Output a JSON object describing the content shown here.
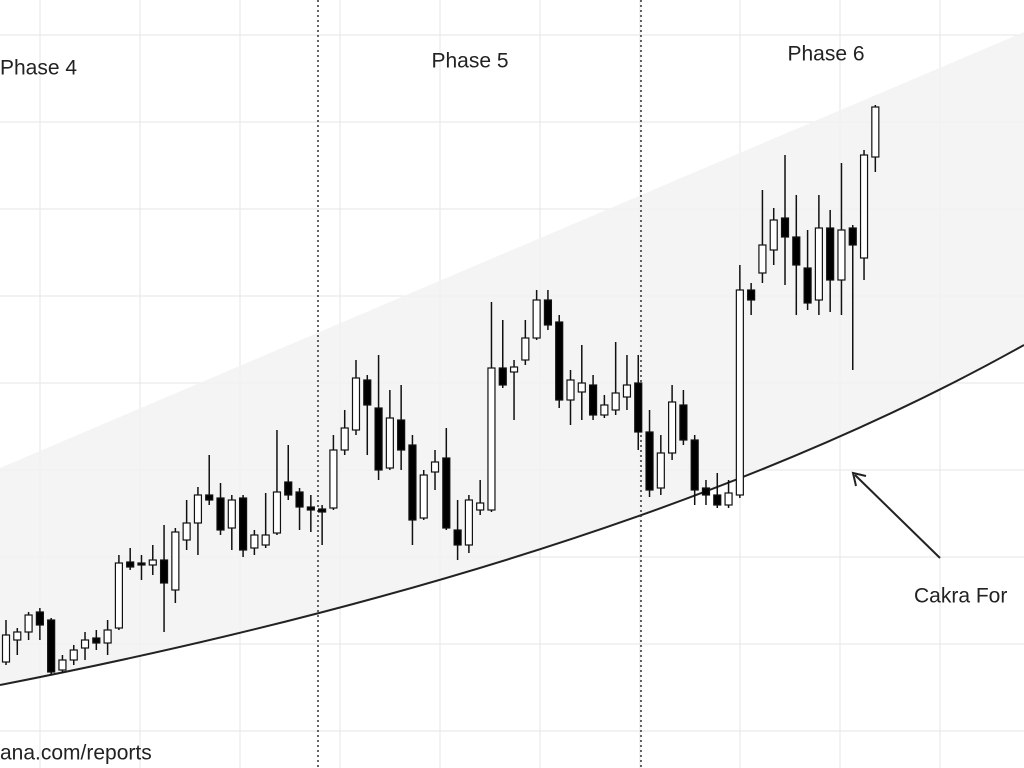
{
  "chart_data": {
    "type": "candlestick",
    "annotations": {
      "phase_4": "Phase 4",
      "phase_5": "Phase 5",
      "phase_6": "Phase 6",
      "pattern": "Cakra For",
      "source": "ana.com/reports"
    },
    "ylim": [
      0,
      768
    ],
    "up_color": "#ffffff",
    "down_color": "#000000",
    "open": [
      106,
      128,
      136,
      156,
      148,
      98,
      108,
      120,
      130,
      125,
      140,
      206,
      205,
      203,
      208,
      178,
      228,
      245,
      273,
      270,
      240,
      270,
      220,
      223,
      235,
      286,
      276,
      261,
      259,
      260,
      318,
      338,
      388,
      360,
      300,
      348,
      323,
      250,
      296,
      310,
      238,
      223,
      258,
      258,
      400,
      396,
      408,
      430,
      468,
      446,
      368,
      376,
      383,
      353,
      358,
      371,
      385,
      336,
      280,
      315,
      363,
      328,
      280,
      273,
      263,
      273,
      478,
      495,
      518,
      550,
      531,
      500,
      468,
      540,
      488,
      540,
      510,
      611
    ],
    "high": [
      148,
      140,
      156,
      160,
      150,
      113,
      123,
      136,
      138,
      148,
      213,
      220,
      213,
      223,
      243,
      240,
      268,
      281,
      313,
      285,
      273,
      273,
      238,
      275,
      338,
      323,
      280,
      273,
      263,
      333,
      358,
      408,
      393,
      413,
      378,
      383,
      333,
      298,
      318,
      340,
      268,
      273,
      288,
      466,
      448,
      408,
      448,
      478,
      478,
      453,
      398,
      423,
      393,
      373,
      426,
      413,
      413,
      358,
      333,
      383,
      378,
      333,
      288,
      295,
      288,
      503,
      485,
      578,
      560,
      613,
      573,
      538,
      573,
      558,
      605,
      543,
      618,
      663
    ],
    "low": [
      103,
      113,
      128,
      128,
      93,
      95,
      103,
      108,
      118,
      113,
      138,
      198,
      188,
      193,
      136,
      165,
      218,
      213,
      263,
      233,
      218,
      211,
      213,
      220,
      233,
      268,
      238,
      236,
      223,
      258,
      313,
      333,
      313,
      288,
      298,
      298,
      223,
      248,
      278,
      238,
      208,
      215,
      253,
      256,
      380,
      348,
      403,
      428,
      438,
      360,
      343,
      348,
      348,
      350,
      353,
      358,
      318,
      271,
      273,
      308,
      323,
      263,
      263,
      260,
      260,
      270,
      453,
      485,
      503,
      483,
      453,
      458,
      453,
      456,
      453,
      398,
      488,
      596
    ],
    "close": [
      133,
      136,
      153,
      143,
      96,
      108,
      118,
      128,
      125,
      138,
      205,
      201,
      203,
      208,
      185,
      236,
      245,
      273,
      268,
      238,
      268,
      218,
      233,
      233,
      276,
      273,
      261,
      258,
      256,
      318,
      340,
      390,
      363,
      298,
      350,
      318,
      248,
      293,
      306,
      240,
      223,
      268,
      265,
      400,
      383,
      401,
      430,
      468,
      443,
      368,
      388,
      385,
      353,
      363,
      375,
      383,
      336,
      278,
      315,
      366,
      328,
      278,
      273,
      263,
      275,
      478,
      468,
      523,
      548,
      531,
      503,
      465,
      540,
      488,
      538,
      523,
      613,
      661
    ]
  }
}
